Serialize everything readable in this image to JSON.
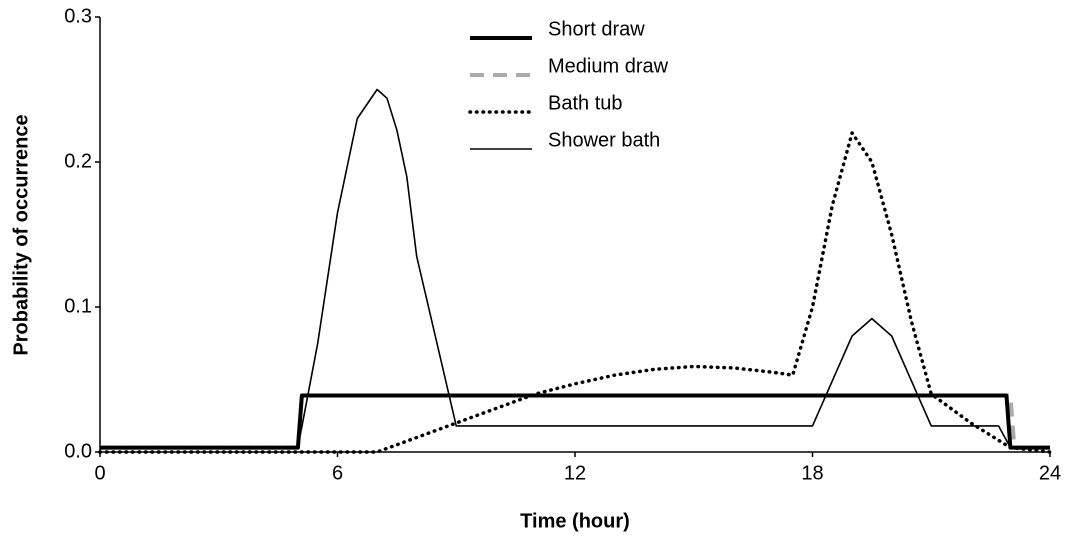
{
  "chart_data": {
    "type": "line",
    "xlabel": "Time (hour)",
    "ylabel": "Probability of occurrence",
    "xlim": [
      0,
      24
    ],
    "xticks": [
      0,
      6,
      12,
      18,
      24
    ],
    "ylim": [
      0,
      0.3
    ],
    "yticks": [
      {
        "value": 0,
        "label": "0.0"
      },
      0.1,
      0.2,
      0.3
    ],
    "grid": false,
    "legend": "upper center",
    "series": [
      {
        "name": "Short draw",
        "color": "#000000",
        "linestyle": "thick",
        "x": [
          0,
          5,
          5.1,
          22.9,
          23,
          24
        ],
        "values": [
          0.003,
          0.003,
          0.039,
          0.039,
          0.003,
          0.003
        ]
      },
      {
        "name": "Medium draw",
        "color": "#aaaaaa",
        "linestyle": "dashed",
        "x": [
          0,
          5,
          5.1,
          23,
          23.1,
          24
        ],
        "values": [
          0.003,
          0.003,
          0.039,
          0.039,
          0.003,
          0.003
        ]
      },
      {
        "name": "Bath tub",
        "color": "#000000",
        "linestyle": "dotted",
        "x": [
          0,
          7,
          8,
          9,
          10,
          11,
          12,
          13,
          14,
          15,
          16,
          17,
          17.5,
          18,
          18.5,
          19,
          19.5,
          20,
          20.5,
          21,
          22,
          23,
          24
        ],
        "values": [
          0,
          0,
          0.01,
          0.02,
          0.03,
          0.04,
          0.047,
          0.053,
          0.057,
          0.059,
          0.058,
          0.055,
          0.053,
          0.1,
          0.17,
          0.22,
          0.2,
          0.15,
          0.09,
          0.04,
          0.02,
          0.003,
          0
        ]
      },
      {
        "name": "Shower bath",
        "color": "#000000",
        "linestyle": "thin",
        "x": [
          0,
          5,
          5.5,
          6,
          6.5,
          7,
          7.25,
          7.5,
          7.75,
          8,
          9,
          18,
          19,
          19.5,
          20,
          21,
          22.7,
          23,
          24
        ],
        "values": [
          0.003,
          0.003,
          0.075,
          0.165,
          0.23,
          0.25,
          0.244,
          0.222,
          0.19,
          0.135,
          0.018,
          0.018,
          0.08,
          0.092,
          0.08,
          0.018,
          0.018,
          0.003,
          0.003
        ]
      }
    ]
  }
}
